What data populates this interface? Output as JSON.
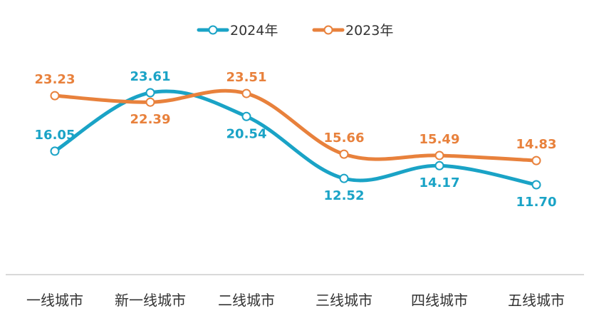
{
  "chart_data": {
    "type": "line",
    "title": "",
    "xlabel": "",
    "ylabel": "",
    "ylim": [
      5,
      26
    ],
    "grid": false,
    "legend_position": "top-center",
    "smooth": true,
    "categories": [
      "一线城市",
      "新一线城市",
      "二线城市",
      "三线城市",
      "四线城市",
      "五线城市"
    ],
    "series": [
      {
        "name": "2024年",
        "color": "#1AA3C6",
        "values": [
          16.05,
          23.61,
          20.54,
          12.52,
          14.17,
          11.7
        ],
        "labels": [
          "16.05",
          "23.61",
          "20.54",
          "12.52",
          "14.17",
          "11.70"
        ]
      },
      {
        "name": "2023年",
        "color": "#E8813C",
        "values": [
          23.23,
          22.39,
          23.51,
          15.66,
          15.49,
          14.83
        ],
        "labels": [
          "23.23",
          "22.39",
          "23.51",
          "15.66",
          "15.49",
          "14.83"
        ]
      }
    ],
    "axis_color": "#D9D9D9"
  }
}
